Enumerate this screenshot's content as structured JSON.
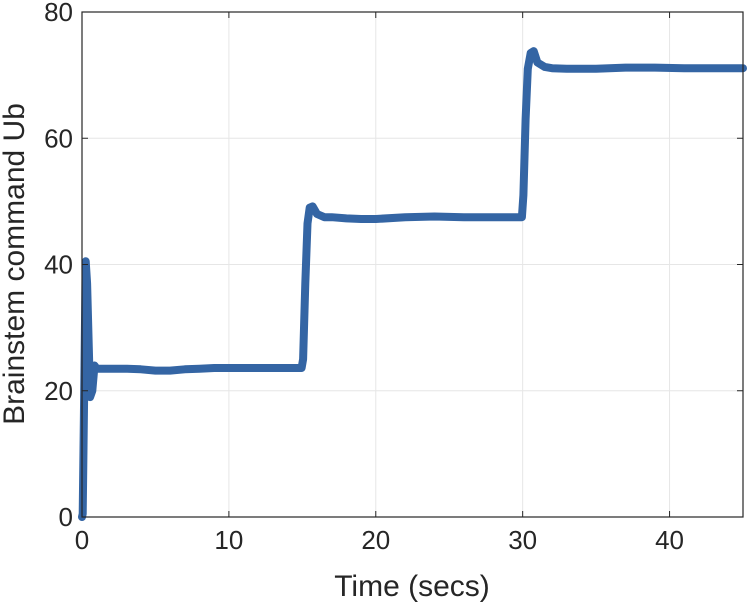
{
  "chart_data": {
    "type": "line",
    "title": "",
    "xlabel": "Time (secs)",
    "ylabel": "Brainstem command Ub",
    "xlim": [
      0,
      45
    ],
    "ylim": [
      0,
      80
    ],
    "xticks": [
      0,
      10,
      20,
      30,
      40
    ],
    "yticks": [
      0,
      20,
      40,
      60,
      80
    ],
    "grid": true,
    "legend": "none",
    "series": [
      {
        "color": "#3465a4",
        "x": [
          0,
          0.05,
          0.15,
          0.25,
          0.35,
          0.45,
          0.55,
          0.7,
          0.85,
          1.0,
          1.3,
          2,
          3,
          4,
          5,
          6,
          7,
          8,
          9,
          10,
          11,
          12,
          13,
          14,
          14.95,
          15.05,
          15.2,
          15.35,
          15.5,
          15.7,
          16.0,
          16.5,
          17,
          18,
          19,
          20,
          22,
          24,
          26,
          28,
          29.95,
          30.05,
          30.2,
          30.35,
          30.55,
          30.75,
          31.0,
          31.5,
          32,
          33,
          34,
          35,
          37,
          39,
          41,
          43,
          45
        ],
        "y": [
          0,
          0.5,
          20,
          40.5,
          37,
          28,
          19,
          20,
          24,
          23.5,
          23.5,
          23.5,
          23.5,
          23.4,
          23.2,
          23.2,
          23.4,
          23.5,
          23.6,
          23.6,
          23.6,
          23.6,
          23.6,
          23.6,
          23.6,
          25,
          37,
          46.5,
          49,
          49.2,
          48,
          47.5,
          47.5,
          47.3,
          47.2,
          47.2,
          47.5,
          47.6,
          47.5,
          47.5,
          47.5,
          51,
          63,
          71,
          73.5,
          73.8,
          72,
          71.3,
          71.1,
          71,
          71,
          71,
          71.2,
          71.2,
          71.1,
          71.1,
          71.1
        ]
      }
    ]
  }
}
